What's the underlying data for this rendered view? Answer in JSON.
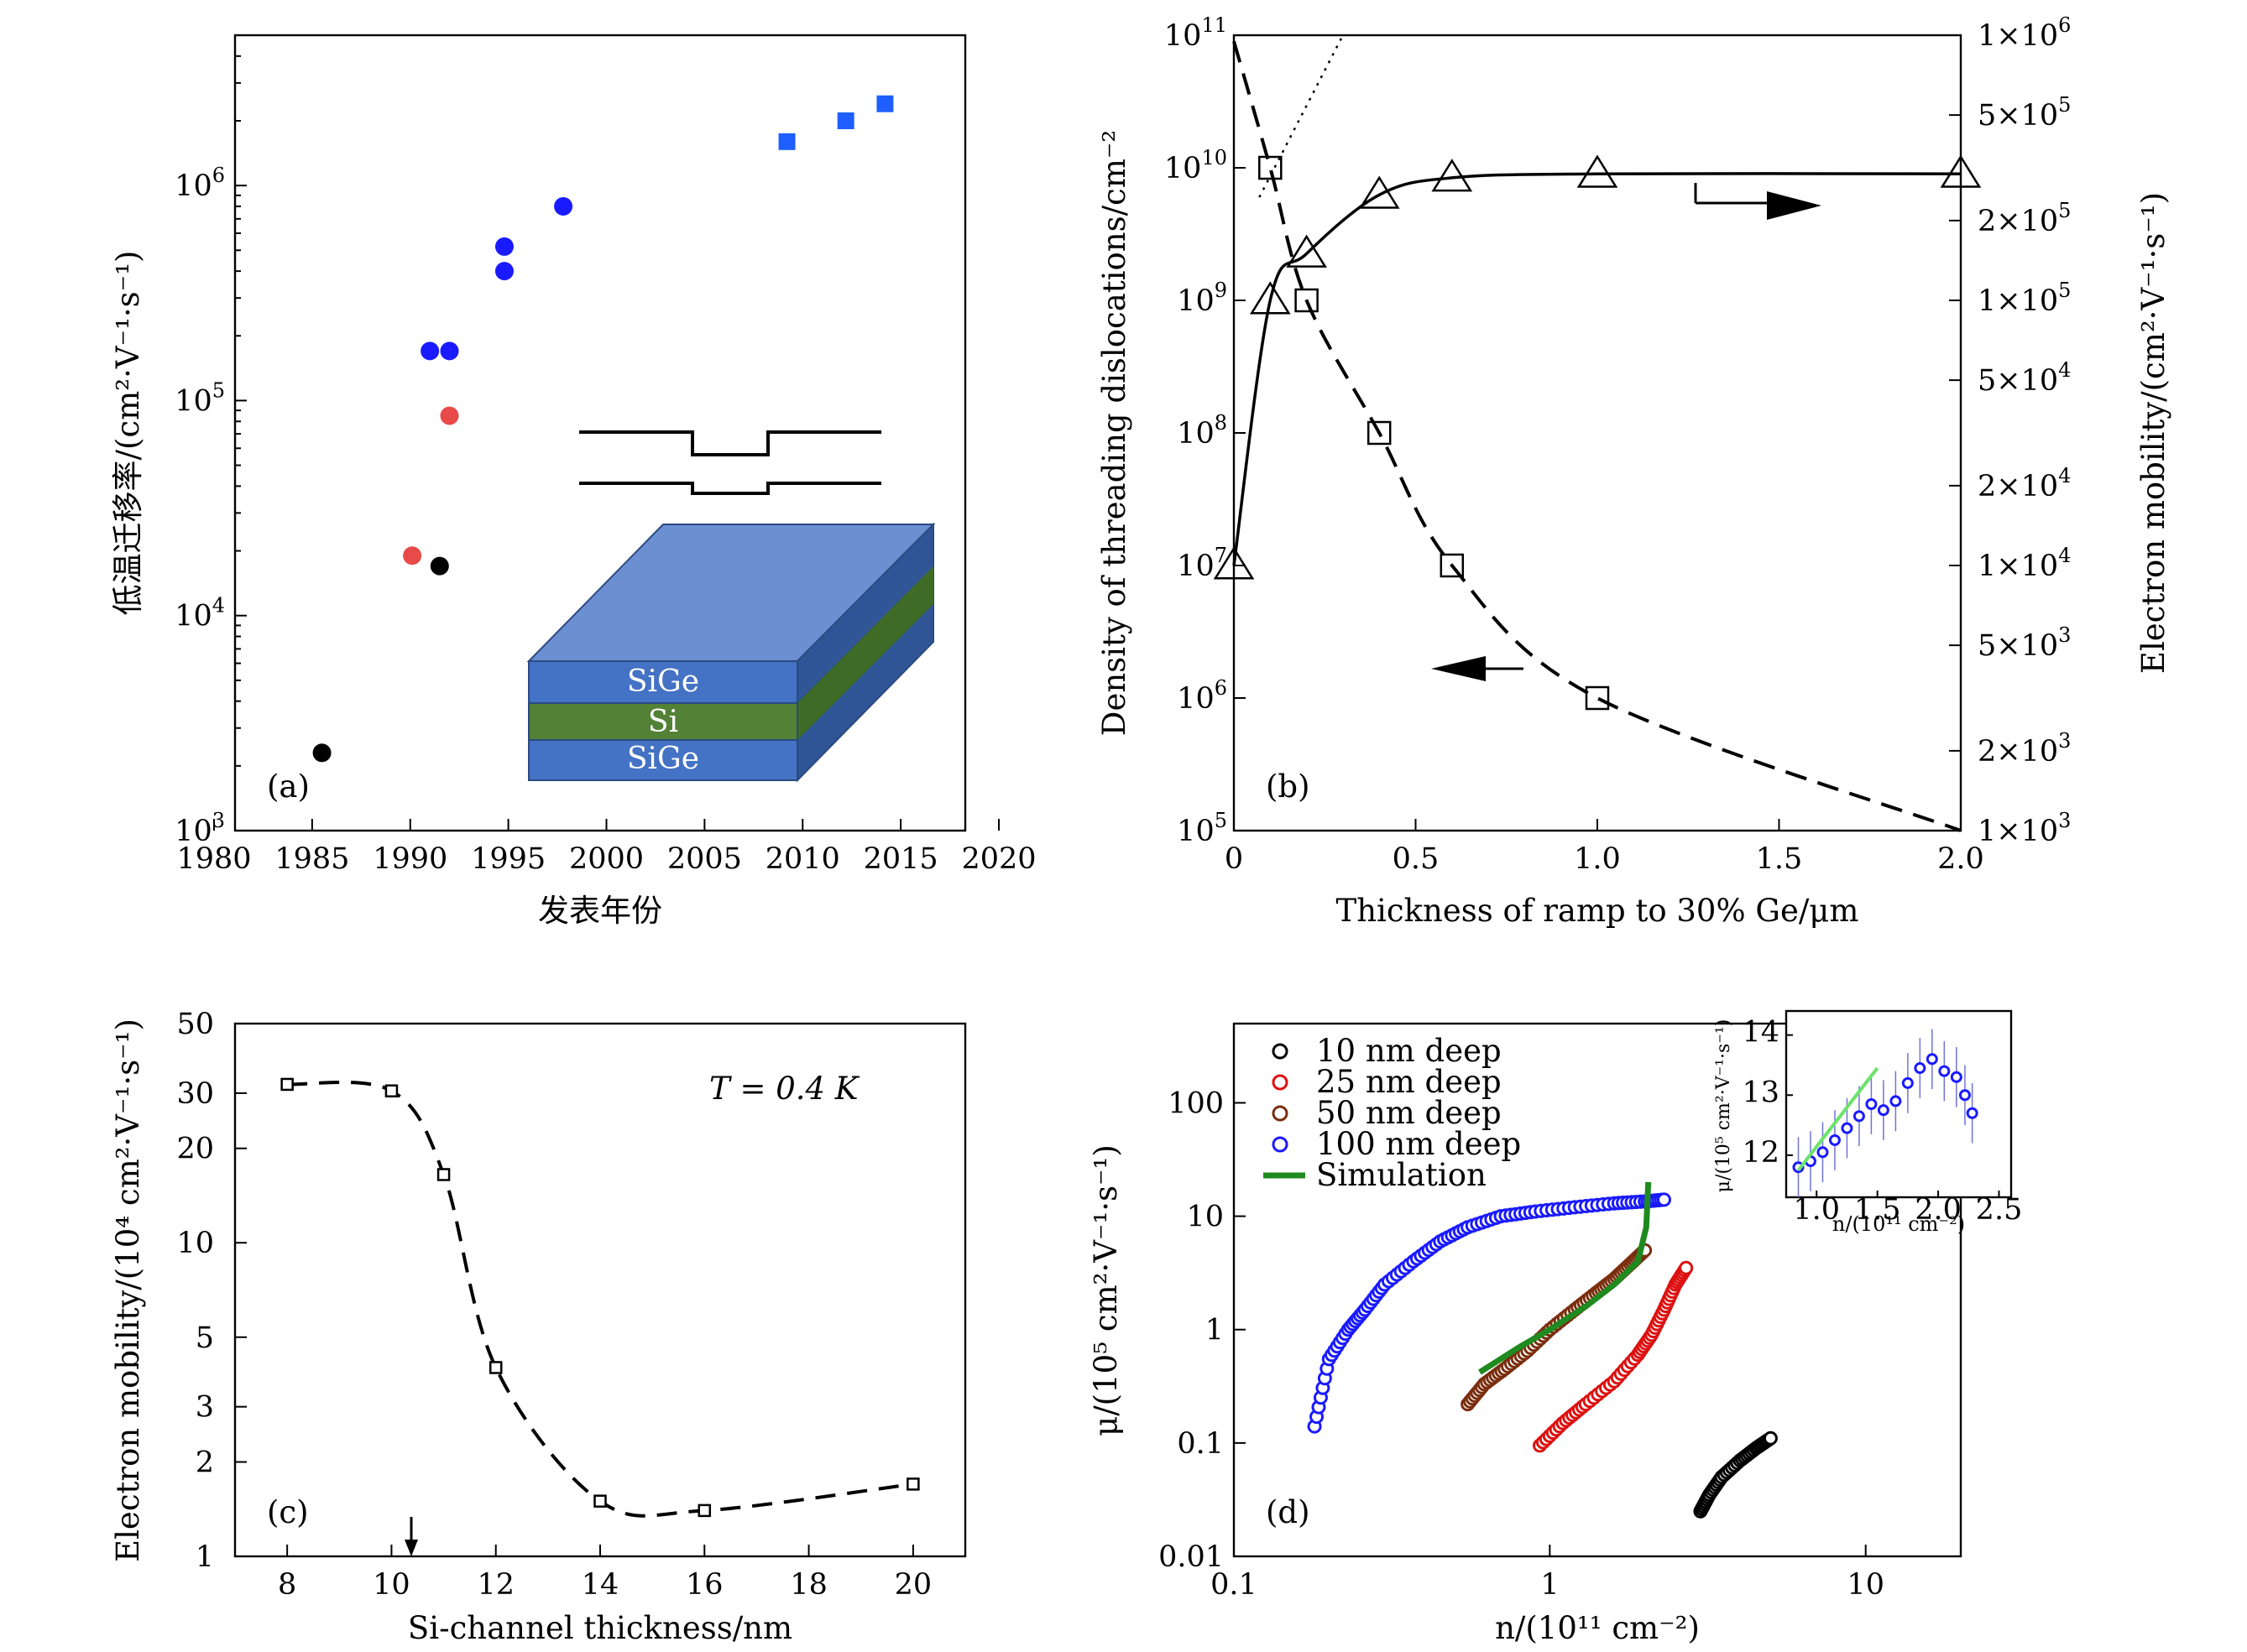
{
  "colors": {
    "blue_marker": "#1a1aff",
    "red_marker": "#e84a4a",
    "black_marker": "#000000",
    "square_blue": "#1f5fff",
    "sige_layer": "#4472c4",
    "si_layer": "#538135",
    "sim_green": "#1f8a1f",
    "inset_fit": "#6be36b"
  },
  "panels": {
    "a": {
      "label": "(a)",
      "xlabel": "发表年份",
      "ylabel": "低温迁移率/(cm²·V⁻¹·s⁻¹)",
      "xticks": [
        "1980",
        "1985",
        "1990",
        "1995",
        "2000",
        "2005",
        "2010",
        "2015",
        "2020"
      ],
      "yticks": [
        {
          "base": "10",
          "exp": "3"
        },
        {
          "base": "10",
          "exp": "4"
        },
        {
          "base": "10",
          "exp": "5"
        },
        {
          "base": "10",
          "exp": "6"
        }
      ],
      "layers": [
        "SiGe",
        "Si",
        "SiGe"
      ]
    },
    "b": {
      "label": "(b)",
      "xlabel": "Thickness of ramp to 30% Ge/μm",
      "ylabel_left": "Density of threading dislocations/cm⁻²",
      "ylabel_right": "Electron mobility/(cm²·V⁻¹·s⁻¹)",
      "xticks": [
        "0",
        "0.5",
        "1.0",
        "1.5",
        "2.0"
      ],
      "yticks_left": [
        {
          "base": "10",
          "exp": "5"
        },
        {
          "base": "10",
          "exp": "6"
        },
        {
          "base": "10",
          "exp": "7"
        },
        {
          "base": "10",
          "exp": "8"
        },
        {
          "base": "10",
          "exp": "9"
        },
        {
          "base": "10",
          "exp": "10"
        },
        {
          "base": "10",
          "exp": "11"
        }
      ],
      "yticks_right": [
        {
          "m": "1",
          "exp": "3"
        },
        {
          "m": "2",
          "exp": "3"
        },
        {
          "m": "5",
          "exp": "3"
        },
        {
          "m": "1",
          "exp": "4"
        },
        {
          "m": "2",
          "exp": "4"
        },
        {
          "m": "5",
          "exp": "4"
        },
        {
          "m": "1",
          "exp": "5"
        },
        {
          "m": "2",
          "exp": "5"
        },
        {
          "m": "5",
          "exp": "5"
        },
        {
          "m": "1",
          "exp": "6"
        }
      ]
    },
    "c": {
      "label": "(c)",
      "xlabel": "Si-channel thickness/nm",
      "ylabel": "Electron mobility/(10⁴ cm²·V⁻¹·s⁻¹)",
      "annotation": "T = 0.4 K",
      "xticks": [
        "8",
        "10",
        "12",
        "14",
        "16",
        "18",
        "20"
      ],
      "yticks": [
        "1",
        "2",
        "3",
        "5",
        "10",
        "20",
        "30",
        "50"
      ]
    },
    "d": {
      "label": "(d)",
      "xlabel": "n/(10¹¹ cm⁻²)",
      "ylabel": "μ/(10⁵ cm²·V⁻¹·s⁻¹)",
      "xticks": [
        "0.1",
        "1",
        "10"
      ],
      "yticks": [
        "0.01",
        "0.1",
        "1",
        "10",
        "100"
      ],
      "legend": [
        "10 nm deep",
        "25 nm deep",
        "50 nm deep",
        "100 nm deep",
        "Simulation"
      ],
      "inset": {
        "xlabel": "n/(10¹¹ cm⁻²)",
        "ylabel": "μ/(10⁵ cm²·V⁻¹·s⁻¹)",
        "xticks": [
          "1.0",
          "1.5",
          "2.0",
          "2.5"
        ],
        "yticks": [
          "12",
          "13",
          "14"
        ]
      }
    }
  },
  "chart_data": [
    {
      "panel": "a",
      "type": "scatter",
      "xlabel": "发表年份",
      "ylabel": "低温迁移率/(cm²·V⁻¹·s⁻¹)",
      "xlim": [
        1980,
        2020
      ],
      "ylim": [
        1000,
        5000000
      ],
      "yscale": "log",
      "series": [
        {
          "marker": "circle",
          "color": "#000000",
          "points": [
            [
              1985.5,
              2300
            ],
            [
              1991.5,
              17000
            ]
          ]
        },
        {
          "marker": "circle",
          "color": "#e84a4a",
          "points": [
            [
              1990.1,
              19000
            ],
            [
              1992,
              85000
            ]
          ]
        },
        {
          "marker": "circle",
          "color": "#1a1aff",
          "points": [
            [
              1991,
              170000
            ],
            [
              1992,
              170000
            ],
            [
              1994.8,
              400000
            ],
            [
              1994.8,
              520000
            ],
            [
              1997.8,
              800000
            ]
          ]
        },
        {
          "marker": "square",
          "color": "#1f5fff",
          "points": [
            [
              2009.2,
              1600000
            ],
            [
              2012.2,
              2000000
            ],
            [
              2014.2,
              2400000
            ]
          ]
        }
      ]
    },
    {
      "panel": "b",
      "type": "line",
      "xlabel": "Thickness of ramp to 30% Ge/μm",
      "xlim": [
        0,
        2.0
      ],
      "series": [
        {
          "name": "",
          "axis": "left",
          "ylim": [
            100000,
            100000000000
          ],
          "yscale": "log",
          "marker": "square",
          "line": "dashed",
          "points": [
            [
              0.1,
              10000000000
            ],
            [
              0.2,
              1000000000
            ],
            [
              0.4,
              100000000
            ],
            [
              0.6,
              10000000
            ],
            [
              1.0,
              1000000
            ]
          ],
          "curve": [
            [
              0,
              90000000000
            ],
            [
              0.1,
              10000000000
            ],
            [
              0.2,
              1000000000
            ],
            [
              0.4,
              100000000
            ],
            [
              0.6,
              10000000
            ],
            [
              1.0,
              1000000
            ],
            [
              2.0,
              100000
            ]
          ]
        },
        {
          "name": "",
          "axis": "right",
          "ylim": [
            1000,
            1000000
          ],
          "yscale": "log",
          "marker": "triangle",
          "line": "solid",
          "points": [
            [
              0,
              10000
            ],
            [
              0.1,
              100000
            ],
            [
              0.2,
              150000
            ],
            [
              0.4,
              250000
            ],
            [
              0.6,
              290000
            ],
            [
              1.0,
              300000
            ],
            [
              2.0,
              300000
            ]
          ],
          "curve": [
            [
              0,
              10000
            ],
            [
              0.1,
              100000
            ],
            [
              0.2,
              150000
            ],
            [
              0.4,
              250000
            ],
            [
              0.6,
              290000
            ],
            [
              1.0,
              300000
            ],
            [
              2.0,
              300000
            ]
          ]
        },
        {
          "name": "",
          "axis": "left",
          "line": "dotted",
          "points": [
            [
              0.07,
              6000000000
            ],
            [
              0.3,
              100000000000
            ]
          ]
        }
      ]
    },
    {
      "panel": "c",
      "type": "line",
      "xlabel": "Si-channel thickness/nm",
      "ylabel": "Electron mobility/(10⁴ cm²·V⁻¹·s⁻¹)",
      "xlim": [
        7,
        21
      ],
      "ylim": [
        1,
        50
      ],
      "yscale": "log",
      "x": [
        8,
        10,
        11,
        12,
        14,
        16,
        20
      ],
      "values": [
        32,
        30.5,
        16.5,
        4,
        1.5,
        1.4,
        1.7
      ]
    },
    {
      "panel": "d",
      "type": "scatter",
      "xlabel": "n/(10¹¹ cm⁻²)",
      "ylabel": "μ/(10⁵ cm²·V⁻¹·s⁻¹)",
      "xlim": [
        0.1,
        20
      ],
      "ylim": [
        0.01,
        500
      ],
      "xscale": "log",
      "yscale": "log",
      "series": [
        {
          "name": "10 nm deep",
          "color": "#000000",
          "points": [
            [
              3.0,
              0.025
            ],
            [
              3.2,
              0.035
            ],
            [
              3.5,
              0.05
            ],
            [
              4.0,
              0.07
            ],
            [
              4.5,
              0.09
            ],
            [
              5.0,
              0.11
            ]
          ]
        },
        {
          "name": "25 nm deep",
          "color": "#dd1111",
          "points": [
            [
              0.93,
              0.095
            ],
            [
              1.1,
              0.15
            ],
            [
              1.3,
              0.22
            ],
            [
              1.6,
              0.35
            ],
            [
              1.9,
              0.6
            ],
            [
              2.1,
              0.9
            ],
            [
              2.3,
              1.5
            ],
            [
              2.5,
              2.5
            ],
            [
              2.7,
              3.5
            ]
          ]
        },
        {
          "name": "50 nm deep",
          "color": "#7a2e0e",
          "points": [
            [
              0.55,
              0.22
            ],
            [
              0.62,
              0.33
            ],
            [
              0.72,
              0.45
            ],
            [
              0.85,
              0.65
            ],
            [
              1.0,
              1.0
            ],
            [
              1.2,
              1.5
            ],
            [
              1.4,
              2.1
            ],
            [
              1.6,
              2.8
            ],
            [
              1.8,
              3.8
            ],
            [
              2.0,
              5.0
            ]
          ]
        },
        {
          "name": "100 nm deep",
          "color": "#1a1aff",
          "points": [
            [
              0.18,
              0.14
            ],
            [
              0.2,
              0.55
            ],
            [
              0.23,
              1.0
            ],
            [
              0.26,
              1.5
            ],
            [
              0.3,
              2.5
            ],
            [
              0.37,
              4
            ],
            [
              0.45,
              6
            ],
            [
              0.55,
              8
            ],
            [
              0.7,
              10
            ],
            [
              0.9,
              11
            ],
            [
              1.2,
              12
            ],
            [
              1.6,
              13
            ],
            [
              2.0,
              13.5
            ],
            [
              2.3,
              14
            ]
          ]
        },
        {
          "name": "Simulation",
          "color": "#1f8a1f",
          "line": "solid",
          "points": [
            [
              0.6,
              0.42
            ],
            [
              0.8,
              0.7
            ],
            [
              1.0,
              1.0
            ],
            [
              1.3,
              1.6
            ],
            [
              1.6,
              2.5
            ],
            [
              1.9,
              4.0
            ],
            [
              2.02,
              8.0
            ],
            [
              2.05,
              20
            ]
          ]
        }
      ]
    },
    {
      "panel": "d-inset",
      "type": "scatter",
      "xlabel": "n/(10¹¹ cm⁻²)",
      "ylabel": "μ/(10⁵ cm²·V⁻¹·s⁻¹)",
      "xlim": [
        0.75,
        2.6
      ],
      "ylim": [
        11.3,
        14.4
      ],
      "series": [
        {
          "name": "100 nm deep",
          "color": "#1a1aff",
          "error_bar": 0.5,
          "points": [
            [
              0.85,
              11.8
            ],
            [
              0.95,
              11.9
            ],
            [
              1.05,
              12.05
            ],
            [
              1.15,
              12.25
            ],
            [
              1.25,
              12.45
            ],
            [
              1.35,
              12.65
            ],
            [
              1.45,
              12.85
            ],
            [
              1.55,
              12.75
            ],
            [
              1.65,
              12.9
            ],
            [
              1.75,
              13.2
            ],
            [
              1.85,
              13.45
            ],
            [
              1.95,
              13.6
            ],
            [
              2.05,
              13.4
            ],
            [
              2.15,
              13.3
            ],
            [
              2.22,
              13.0
            ],
            [
              2.28,
              12.7
            ]
          ]
        },
        {
          "name": "",
          "color": "#6be36b",
          "line": "solid",
          "points": [
            [
              0.85,
              11.75
            ],
            [
              1.5,
              13.45
            ]
          ]
        }
      ]
    }
  ]
}
